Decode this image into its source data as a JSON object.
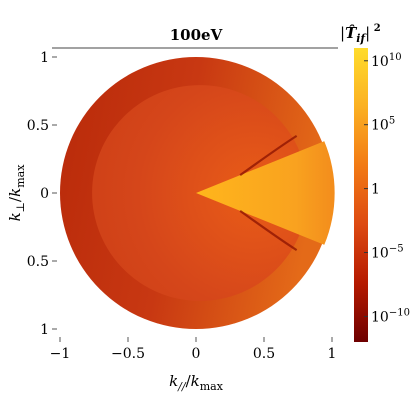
{
  "chart_data": {
    "type": "heatmap",
    "title": "100eV",
    "xlabel": "k//  / kmax",
    "ylabel": "k⊥ / kmax",
    "xlim": [
      -1,
      1
    ],
    "ylim": [
      -1,
      1
    ],
    "x_ticks": [
      "−1",
      "−0.5",
      "0",
      "0.5",
      "1"
    ],
    "y_ticks": [
      "1",
      "0.5",
      "0",
      "0.5",
      "1"
    ],
    "colorbar": {
      "title": "|T̂if|²",
      "scale": "log",
      "range": [
        1e-12,
        100000000000.0
      ],
      "tick_labels": [
        {
          "base": "10",
          "exp": "10",
          "value": 10000000000.0
        },
        {
          "base": "10",
          "exp": "5",
          "value": 100000.0
        },
        {
          "base": "1",
          "exp": "",
          "value": 1
        },
        {
          "base": "10",
          "exp": "−5",
          "value": 1e-05
        },
        {
          "base": "10",
          "exp": "−10",
          "value": 1e-10
        }
      ],
      "colors": [
        "#6e0000",
        "#b51a00",
        "#dd4a12",
        "#f27a14",
        "#fbb022",
        "#ffdc2c"
      ]
    },
    "regions": {
      "outer_disk_radius": 1.0,
      "inner_disk_radius": 0.72,
      "hot_wedge_half_angle_deg": 22,
      "outer_color": "#c93a10",
      "inner_color": "#d8481a",
      "wedge_color": "#ffb21e"
    }
  }
}
